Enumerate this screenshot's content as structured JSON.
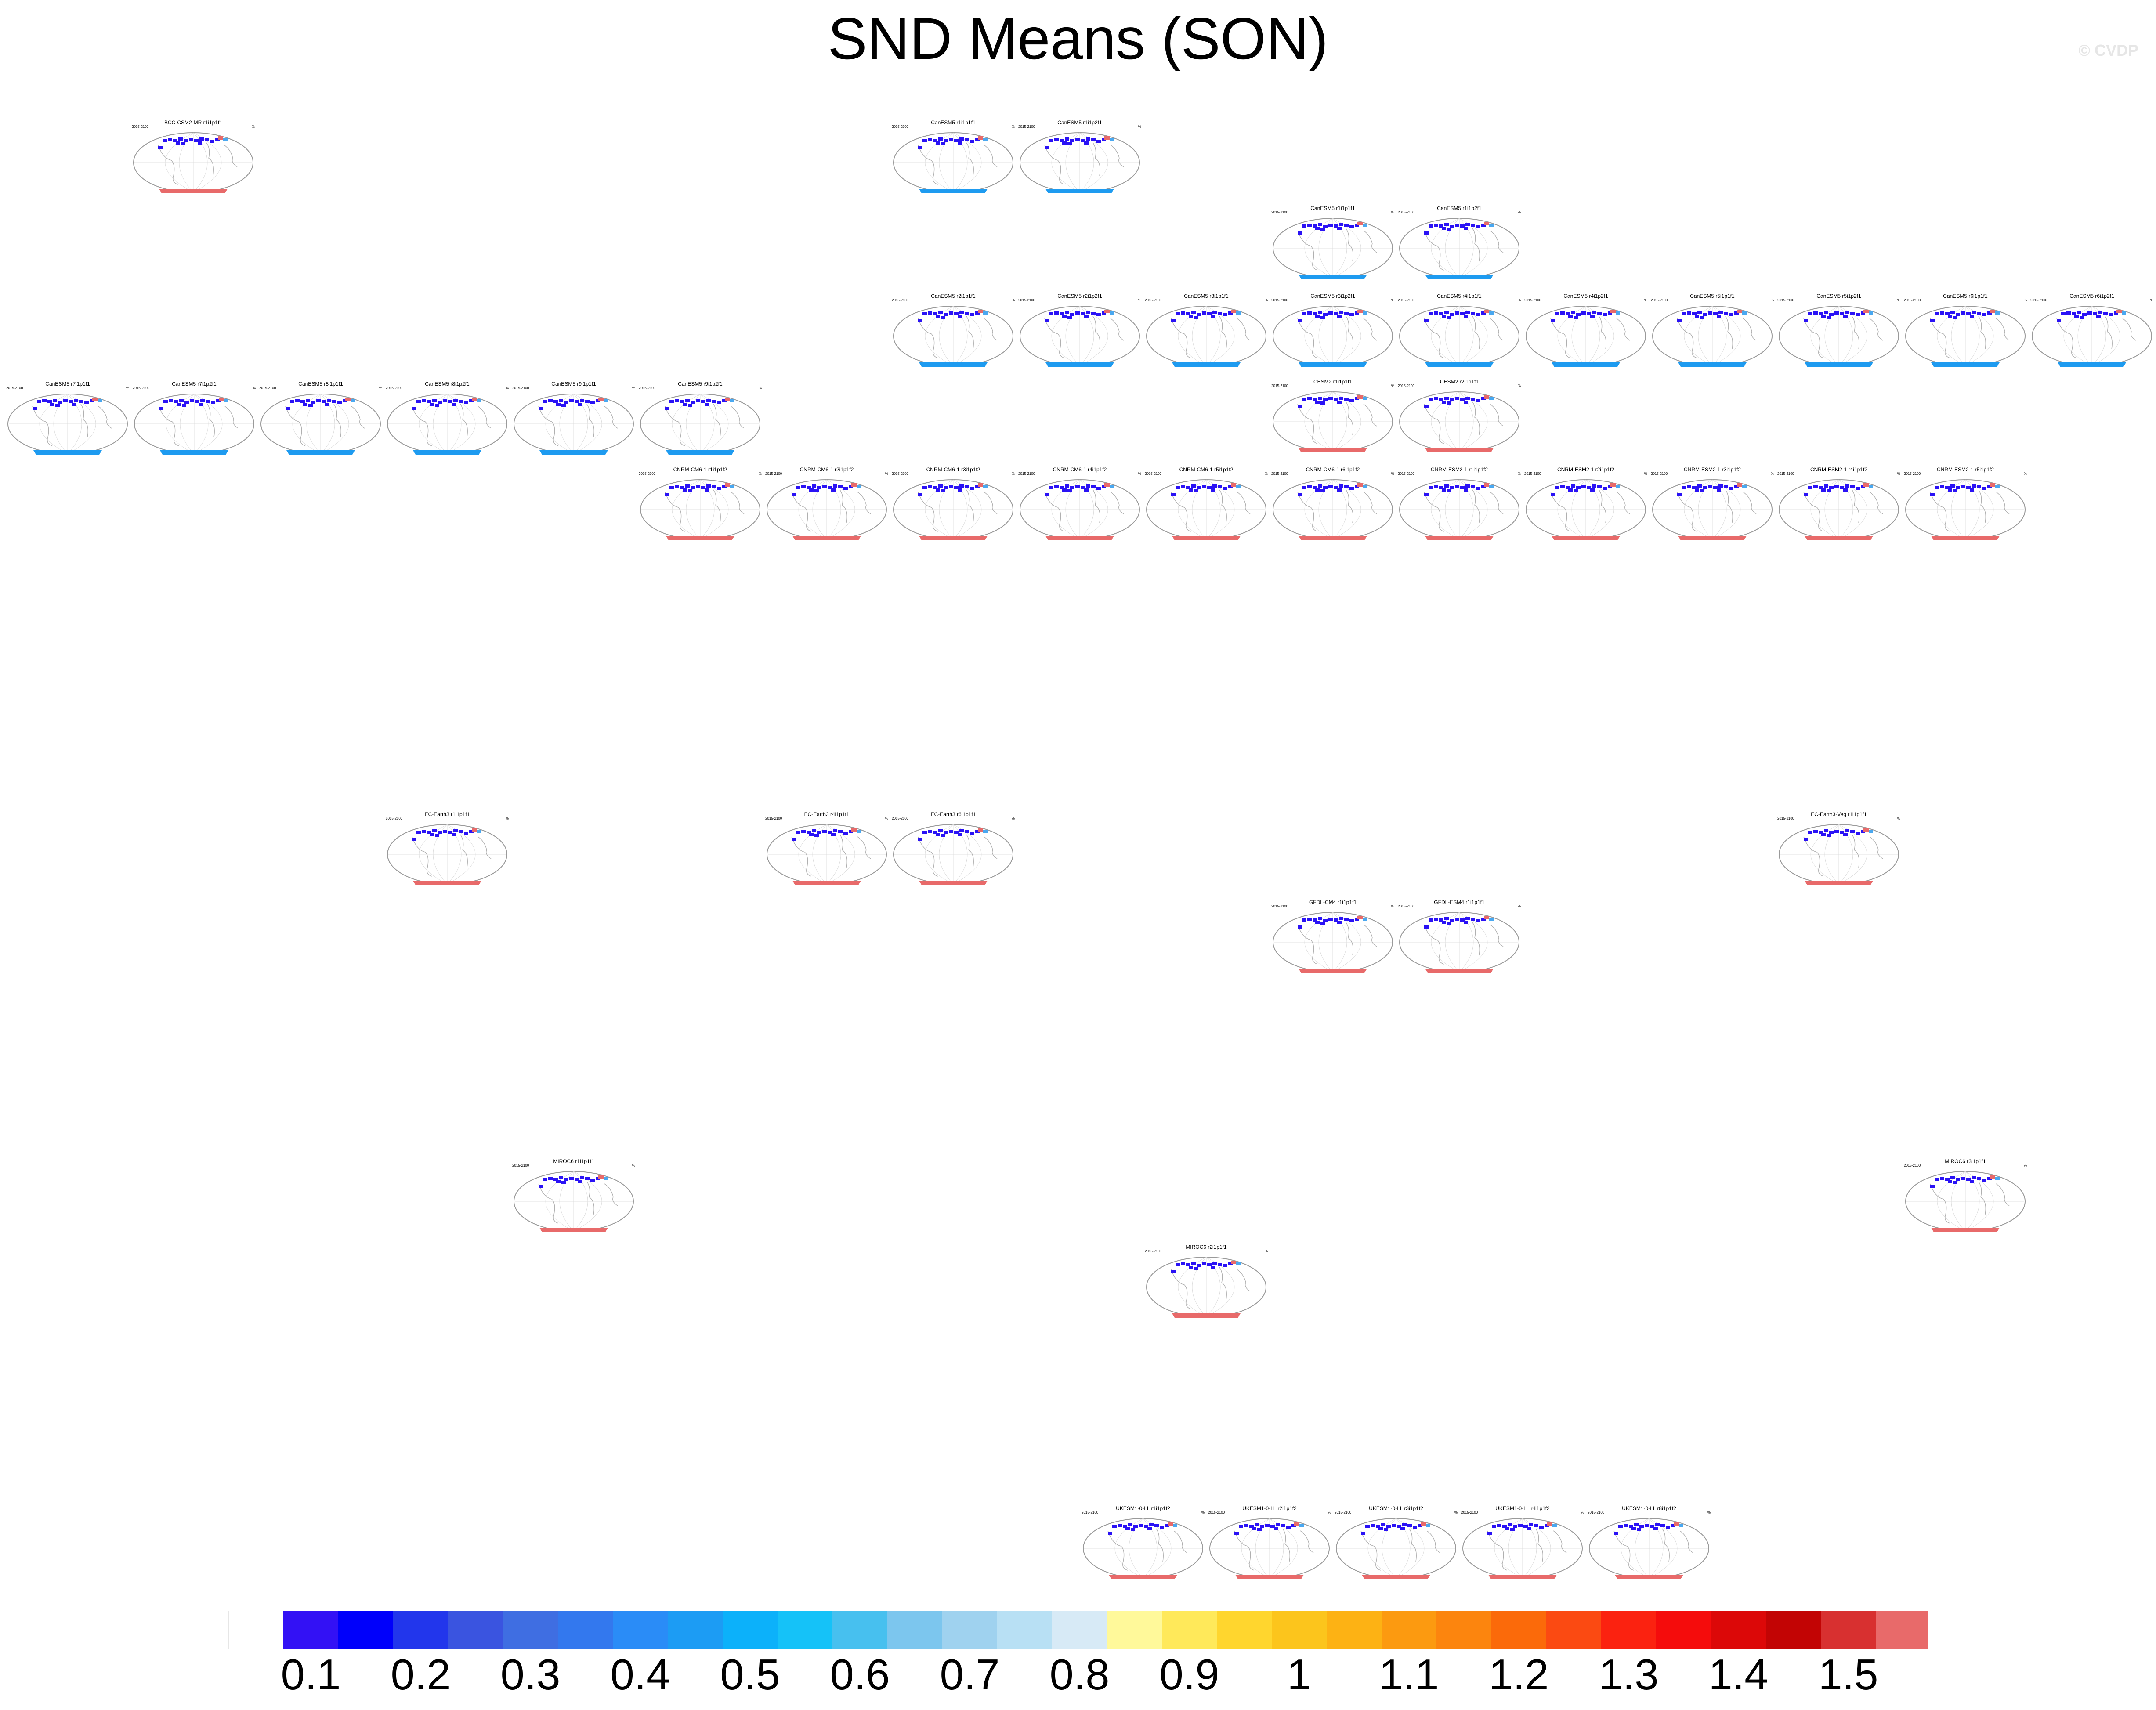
{
  "title": "SND Means (SON)",
  "watermark": "© CVDP",
  "panel_common": {
    "years": "2015-2100",
    "pct": "%"
  },
  "colors": {
    "north_land": "#2a12f5",
    "cool_band": "#1e9bf0",
    "warm_band": "#e86a6a",
    "outline": "#9a9a9a",
    "coast": "#b0b0b0"
  },
  "panels": [
    {
      "label": "BCC-CSM2-MR r1i1p1f1",
      "band": "warm"
    },
    {
      "label": "CanESM5 r1i1p1f1",
      "band": "cool"
    },
    {
      "label": "CanESM5 r1i1p2f1",
      "band": "cool"
    },
    {
      "label": "CanESM5 r1i1p1f1",
      "band": "cool"
    },
    {
      "label": "CanESM5 r1i1p2f1",
      "band": "cool"
    },
    {
      "label": "CanESM5 r2i1p1f1",
      "band": "cool"
    },
    {
      "label": "CanESM5 r2i1p2f1",
      "band": "cool"
    },
    {
      "label": "CanESM5 r3i1p1f1",
      "band": "cool"
    },
    {
      "label": "CanESM5 r3i1p2f1",
      "band": "cool"
    },
    {
      "label": "CanESM5 r4i1p1f1",
      "band": "cool"
    },
    {
      "label": "CanESM5 r4i1p2f1",
      "band": "cool"
    },
    {
      "label": "CanESM5 r5i1p1f1",
      "band": "cool"
    },
    {
      "label": "CanESM5 r5i1p2f1",
      "band": "cool"
    },
    {
      "label": "CanESM5 r6i1p1f1",
      "band": "cool"
    },
    {
      "label": "CanESM5 r6i1p2f1",
      "band": "cool"
    },
    {
      "label": "CanESM5 r7i1p1f1",
      "band": "cool"
    },
    {
      "label": "CanESM5 r7i1p2f1",
      "band": "cool"
    },
    {
      "label": "CanESM5 r8i1p1f1",
      "band": "cool"
    },
    {
      "label": "CanESM5 r8i1p2f1",
      "band": "cool"
    },
    {
      "label": "CanESM5 r9i1p1f1",
      "band": "cool"
    },
    {
      "label": "CanESM5 r9i1p2f1",
      "band": "cool"
    },
    {
      "label": "CESM2 r1i1p1f1",
      "band": "warm"
    },
    {
      "label": "CESM2 r2i1p1f1",
      "band": "warm"
    },
    {
      "label": "CNRM-CM6-1 r1i1p1f2",
      "band": "warm"
    },
    {
      "label": "CNRM-CM6-1 r2i1p1f2",
      "band": "warm"
    },
    {
      "label": "CNRM-CM6-1 r3i1p1f2",
      "band": "warm"
    },
    {
      "label": "CNRM-CM6-1 r4i1p1f2",
      "band": "warm"
    },
    {
      "label": "CNRM-CM6-1 r5i1p1f2",
      "band": "warm"
    },
    {
      "label": "CNRM-CM6-1 r6i1p1f2",
      "band": "warm"
    },
    {
      "label": "CNRM-ESM2-1 r1i1p1f2",
      "band": "warm"
    },
    {
      "label": "CNRM-ESM2-1 r2i1p1f2",
      "band": "warm"
    },
    {
      "label": "CNRM-ESM2-1 r3i1p1f2",
      "band": "warm"
    },
    {
      "label": "CNRM-ESM2-1 r4i1p1f2",
      "band": "warm"
    },
    {
      "label": "CNRM-ESM2-1 r5i1p1f2",
      "band": "warm"
    },
    {
      "label": "EC-Earth3 r1i1p1f1",
      "band": "warm"
    },
    {
      "label": "EC-Earth3 r4i1p1f1",
      "band": "warm"
    },
    {
      "label": "EC-Earth3 r6i1p1f1",
      "band": "warm"
    },
    {
      "label": "EC-Earth3-Veg r1i1p1f1",
      "band": "warm"
    },
    {
      "label": "GFDL-CM4 r1i1p1f1",
      "band": "warm"
    },
    {
      "label": "GFDL-ESM4 r1i1p1f1",
      "band": "warm"
    },
    {
      "label": "MIROC6 r1i1p1f1",
      "band": "warm"
    },
    {
      "label": "MIROC6 r2i1p1f1",
      "band": "warm"
    },
    {
      "label": "MIROC6 r3i1p1f1",
      "band": "warm"
    },
    {
      "label": "UKESM1-0-LL r1i1p1f2",
      "band": "warm"
    },
    {
      "label": "UKESM1-0-LL r2i1p1f2",
      "band": "warm"
    },
    {
      "label": "UKESM1-0-LL r3i1p1f2",
      "band": "warm"
    },
    {
      "label": "UKESM1-0-LL r4i1p1f2",
      "band": "warm"
    },
    {
      "label": "UKESM1-0-LL r8i1p1f2",
      "band": "warm"
    }
  ],
  "colorbar": {
    "labels": [
      "0.1",
      "0.2",
      "0.3",
      "0.4",
      "0.5",
      "0.6",
      "0.7",
      "0.8",
      "0.9",
      "1",
      "1.1",
      "1.2",
      "1.3",
      "1.4",
      "1.5"
    ],
    "colors": [
      "#ffffff",
      "#3311f5",
      "#0000fb",
      "#2236ec",
      "#3a54e0",
      "#3f6ee2",
      "#3378ee",
      "#2a8cf7",
      "#1c9cf4",
      "#0cb1fa",
      "#15c2f8",
      "#47c0ef",
      "#7cc6ee",
      "#9fd2ef",
      "#b8e0f4",
      "#d7eaf6",
      "#fff99a",
      "#ffe95a",
      "#ffd62e",
      "#fcc51c",
      "#fdb214",
      "#fc9a10",
      "#fc850e",
      "#fb6a0a",
      "#fb4a12",
      "#fb2210",
      "#f50c0c",
      "#dc0808",
      "#c20404",
      "#d83030",
      "#e86a6a"
    ]
  }
}
